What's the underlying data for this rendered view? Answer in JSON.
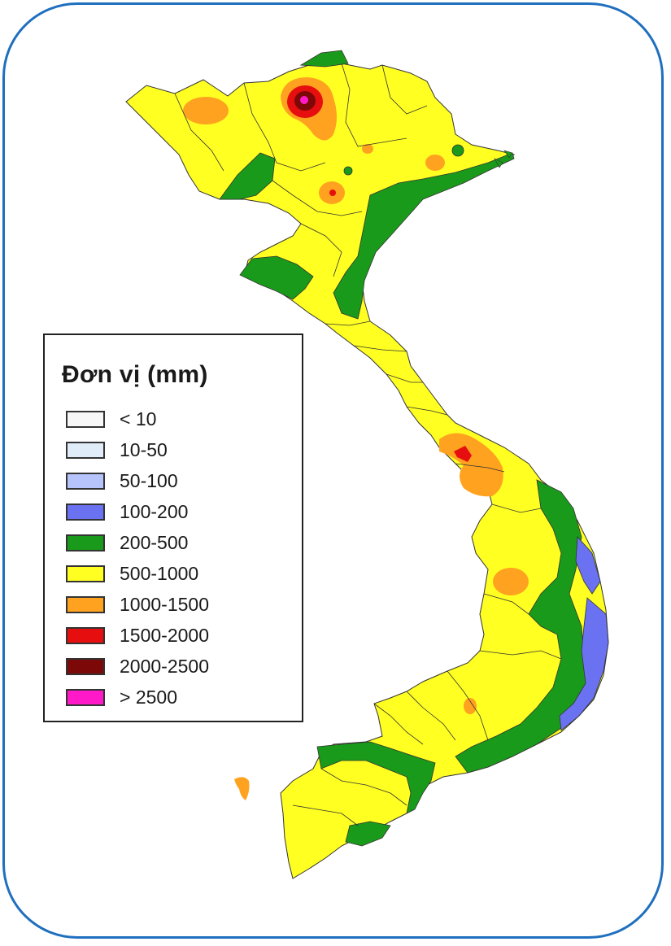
{
  "legend": {
    "title": "Đơn vị (mm)",
    "items": [
      {
        "label": "< 10",
        "color": "#f7f7f7"
      },
      {
        "label": "10-50",
        "color": "#e1ecf9"
      },
      {
        "label": "50-100",
        "color": "#b6c4fb"
      },
      {
        "label": "100-200",
        "color": "#6b72f2"
      },
      {
        "label": "200-500",
        "color": "#1a9a1a"
      },
      {
        "label": "500-1000",
        "color": "#ffff22"
      },
      {
        "label": "1000-1500",
        "color": "#ffa21f"
      },
      {
        "label": "1500-2000",
        "color": "#e60e0e"
      },
      {
        "label": "2000-2500",
        "color": "#7d0808"
      },
      {
        "label": "> 2500",
        "color": "#ff19c8"
      }
    ]
  },
  "frame": {
    "border_color": "#1f6fbf"
  }
}
